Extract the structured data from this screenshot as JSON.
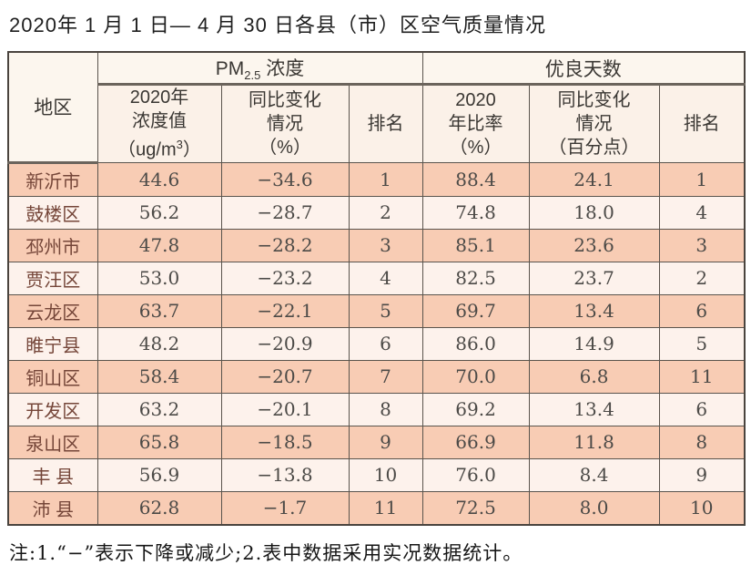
{
  "title": "2020年 1 月 1 日— 4 月 30 日各县（市）区空气质量情况",
  "note": "注:1.“−”表示下降或减少;2.表中数据采用实况数据统计。",
  "colors": {
    "dark_row_bg": "#f8ccb4",
    "light_row_bg": "#fdf2ec",
    "header_bg": "#fbf1e8",
    "border": "#5a544d",
    "region_text": "#754639",
    "number_text": "#4c4a47"
  },
  "table": {
    "headers": {
      "region": "地区",
      "pm_group": {
        "prefix": "PM",
        "sub": "2.5",
        "suffix": " 浓度"
      },
      "good_group": "优良天数",
      "pm_value": {
        "line1": "2020年",
        "line2": "浓度值",
        "unit_prefix": "（ug/m",
        "unit_sup": "3",
        "unit_suffix": "）"
      },
      "pm_change": {
        "line1": "同比变化",
        "line2": "情况",
        "line3": "（%）"
      },
      "pm_rank": "排名",
      "good_rate": {
        "line1": "2020",
        "line2": "年比率",
        "line3": "（%）"
      },
      "good_change": {
        "line1": "同比变化",
        "line2": "情况",
        "line3": "（百分点）"
      },
      "good_rank": "排名"
    },
    "rows": [
      {
        "region": "新沂市",
        "pm_value": "44.6",
        "pm_change": "−34.6",
        "pm_rank": "1",
        "good_rate": "88.4",
        "good_change": "24.1",
        "good_rank": "1"
      },
      {
        "region": "鼓楼区",
        "pm_value": "56.2",
        "pm_change": "−28.7",
        "pm_rank": "2",
        "good_rate": "74.8",
        "good_change": "18.0",
        "good_rank": "4"
      },
      {
        "region": "邳州市",
        "pm_value": "47.8",
        "pm_change": "−28.2",
        "pm_rank": "3",
        "good_rate": "85.1",
        "good_change": "23.6",
        "good_rank": "3"
      },
      {
        "region": "贾汪区",
        "pm_value": "53.0",
        "pm_change": "−23.2",
        "pm_rank": "4",
        "good_rate": "82.5",
        "good_change": "23.7",
        "good_rank": "2"
      },
      {
        "region": "云龙区",
        "pm_value": "63.7",
        "pm_change": "−22.1",
        "pm_rank": "5",
        "good_rate": "69.7",
        "good_change": "13.4",
        "good_rank": "6"
      },
      {
        "region": "睢宁县",
        "pm_value": "48.2",
        "pm_change": "−20.9",
        "pm_rank": "6",
        "good_rate": "86.0",
        "good_change": "14.9",
        "good_rank": "5"
      },
      {
        "region": "铜山区",
        "pm_value": "58.4",
        "pm_change": "−20.7",
        "pm_rank": "7",
        "good_rate": "70.0",
        "good_change": "6.8",
        "good_rank": "11"
      },
      {
        "region": "开发区",
        "pm_value": "63.2",
        "pm_change": "−20.1",
        "pm_rank": "8",
        "good_rate": "69.2",
        "good_change": "13.4",
        "good_rank": "6"
      },
      {
        "region": "泉山区",
        "pm_value": "65.8",
        "pm_change": "−18.5",
        "pm_rank": "9",
        "good_rate": "66.9",
        "good_change": "11.8",
        "good_rank": "8"
      },
      {
        "region": "丰 县",
        "pm_value": "56.9",
        "pm_change": "−13.8",
        "pm_rank": "10",
        "good_rate": "76.0",
        "good_change": "8.4",
        "good_rank": "9"
      },
      {
        "region": "沛 县",
        "pm_value": "62.8",
        "pm_change": "−1.7",
        "pm_rank": "11",
        "good_rate": "72.5",
        "good_change": "8.0",
        "good_rank": "10"
      }
    ]
  },
  "chart_data": {
    "type": "table",
    "title": "2020年1月1日—4月30日各县（市）区空气质量情况",
    "column_groups": [
      "PM2.5浓度",
      "优良天数"
    ],
    "columns": [
      "地区",
      "2020年浓度值（ug/m3）",
      "同比变化情况（%）",
      "排名",
      "2020年比率（%）",
      "同比变化情况（百分点）",
      "排名"
    ],
    "rows": [
      [
        "新沂市",
        44.6,
        -34.6,
        1,
        88.4,
        24.1,
        1
      ],
      [
        "鼓楼区",
        56.2,
        -28.7,
        2,
        74.8,
        18.0,
        4
      ],
      [
        "邳州市",
        47.8,
        -28.2,
        3,
        85.1,
        23.6,
        3
      ],
      [
        "贾汪区",
        53.0,
        -23.2,
        4,
        82.5,
        23.7,
        2
      ],
      [
        "云龙区",
        63.7,
        -22.1,
        5,
        69.7,
        13.4,
        6
      ],
      [
        "睢宁县",
        48.2,
        -20.9,
        6,
        86.0,
        14.9,
        5
      ],
      [
        "铜山区",
        58.4,
        -20.7,
        7,
        70.0,
        6.8,
        11
      ],
      [
        "开发区",
        63.2,
        -20.1,
        8,
        69.2,
        13.4,
        6
      ],
      [
        "泉山区",
        65.8,
        -18.5,
        9,
        66.9,
        11.8,
        8
      ],
      [
        "丰县",
        56.9,
        -13.8,
        10,
        76.0,
        8.4,
        9
      ],
      [
        "沛县",
        62.8,
        -1.7,
        11,
        72.5,
        8.0,
        10
      ]
    ],
    "note": "注:1.“−”表示下降或减少;2.表中数据采用实况数据统计。"
  }
}
